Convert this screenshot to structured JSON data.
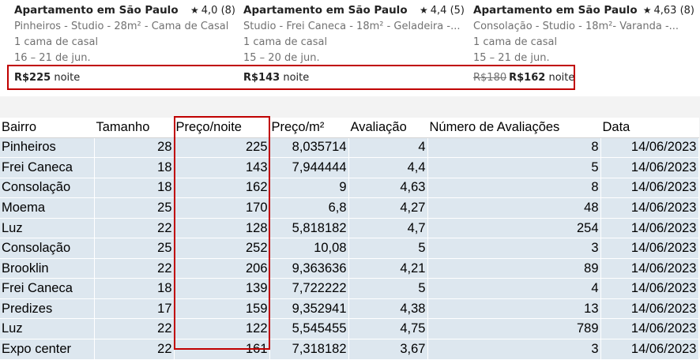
{
  "listings": [
    {
      "title": "Apartamento em São Paulo",
      "rating": "4,0 (8)",
      "subtitle": "Pinheiros - Studio - 28m² - Cama de Casal",
      "beds": "1 cama de casal",
      "dates": "16 – 21 de jun.",
      "old_price": "",
      "price": "R$225",
      "price_unit": "noite"
    },
    {
      "title": "Apartamento em São Paulo",
      "rating": "4,4 (5)",
      "subtitle": "Studio - Frei Caneca - 18m² - Geladeira -...",
      "beds": "1 cama de casal",
      "dates": "15 – 20 de jun.",
      "old_price": "",
      "price": "R$143",
      "price_unit": "noite"
    },
    {
      "title": "Apartamento em São Paulo",
      "rating": "4,63 (8)",
      "subtitle": "Consolação - Studio - 18m²- Varanda -...",
      "beds": "1 cama de casal",
      "dates": "15 – 21 de jun.",
      "old_price": "R$180",
      "price": "R$162",
      "price_unit": "noite"
    }
  ],
  "star_icon": "★",
  "table": {
    "headers": [
      "Bairro",
      "Tamanho",
      "Preço/noite",
      "Preço/m²",
      "Avaliação",
      "Número de Avaliações",
      "Data"
    ],
    "rows": [
      [
        "Pinheiros",
        "28",
        "225",
        "8,035714",
        "4",
        "8",
        "14/06/2023"
      ],
      [
        "Frei Caneca",
        "18",
        "143",
        "7,944444",
        "4,4",
        "5",
        "14/06/2023"
      ],
      [
        "Consolação",
        "18",
        "162",
        "9",
        "4,63",
        "8",
        "14/06/2023"
      ],
      [
        "Moema",
        "25",
        "170",
        "6,8",
        "4,27",
        "48",
        "14/06/2023"
      ],
      [
        "Luz",
        "22",
        "128",
        "5,818182",
        "4,7",
        "254",
        "14/06/2023"
      ],
      [
        "Consolação",
        "25",
        "252",
        "10,08",
        "5",
        "3",
        "14/06/2023"
      ],
      [
        "Brooklin",
        "22",
        "206",
        "9,363636",
        "4,21",
        "89",
        "14/06/2023"
      ],
      [
        "Frei Caneca",
        "18",
        "139",
        "7,722222",
        "5",
        "4",
        "14/06/2023"
      ],
      [
        "Predizes",
        "17",
        "159",
        "9,352941",
        "4,38",
        "13",
        "14/06/2023"
      ],
      [
        "Luz",
        "22",
        "122",
        "5,545455",
        "4,75",
        "789",
        "14/06/2023"
      ],
      [
        "Expo center",
        "22",
        "161",
        "7,318182",
        "3,67",
        "3",
        "14/06/2023"
      ]
    ]
  },
  "colors": {
    "highlight_border": "#c00000",
    "row_fill": "#dde7ef",
    "sheet_background": "#f3f3f3"
  }
}
